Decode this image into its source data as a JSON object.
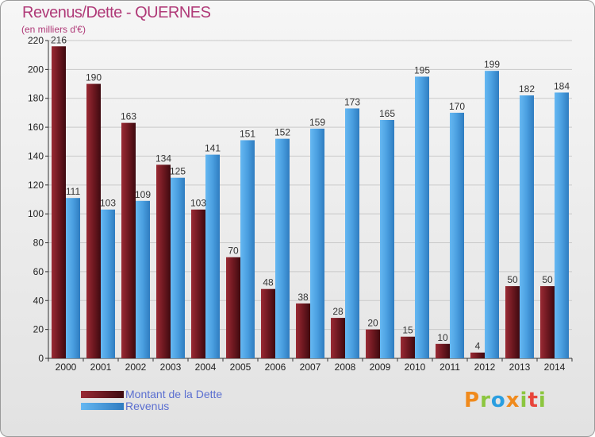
{
  "header": {
    "title": "Revenus/Dette - QUERNES",
    "subtitle": "(en milliers d'€)"
  },
  "colors": {
    "dette": "#7a1c24",
    "revenus": "#4a9fe0",
    "title": "#b03a78",
    "legend_text": "#5b6fd0"
  },
  "chart_data": {
    "type": "bar",
    "categories": [
      "2000",
      "2001",
      "2002",
      "2003",
      "2004",
      "2005",
      "2006",
      "2007",
      "2008",
      "2009",
      "2010",
      "2011",
      "2012",
      "2013",
      "2014"
    ],
    "series": [
      {
        "name": "Montant de la Dette",
        "values": [
          216,
          190,
          163,
          134,
          103,
          70,
          48,
          38,
          28,
          20,
          15,
          10,
          4,
          50,
          50
        ]
      },
      {
        "name": "Revenus",
        "values": [
          111,
          103,
          109,
          125,
          141,
          151,
          152,
          159,
          173,
          165,
          195,
          170,
          199,
          182,
          184
        ]
      }
    ],
    "ylim": [
      0,
      220
    ],
    "yticks": [
      0,
      20,
      40,
      60,
      80,
      100,
      120,
      140,
      160,
      180,
      200,
      220
    ],
    "grid": true,
    "legend_position": "bottom-left"
  },
  "legend": {
    "dette_label": "Montant de la Dette",
    "revenus_label": "Revenus"
  },
  "logo": {
    "letters": [
      "P",
      "r",
      "o",
      "x",
      "i",
      "t",
      "i"
    ],
    "colors": [
      "#f08a1c",
      "#8cc63f",
      "#2a9ee0",
      "#f08a1c",
      "#8cc63f",
      "#e8443a",
      "#8cc63f"
    ]
  }
}
